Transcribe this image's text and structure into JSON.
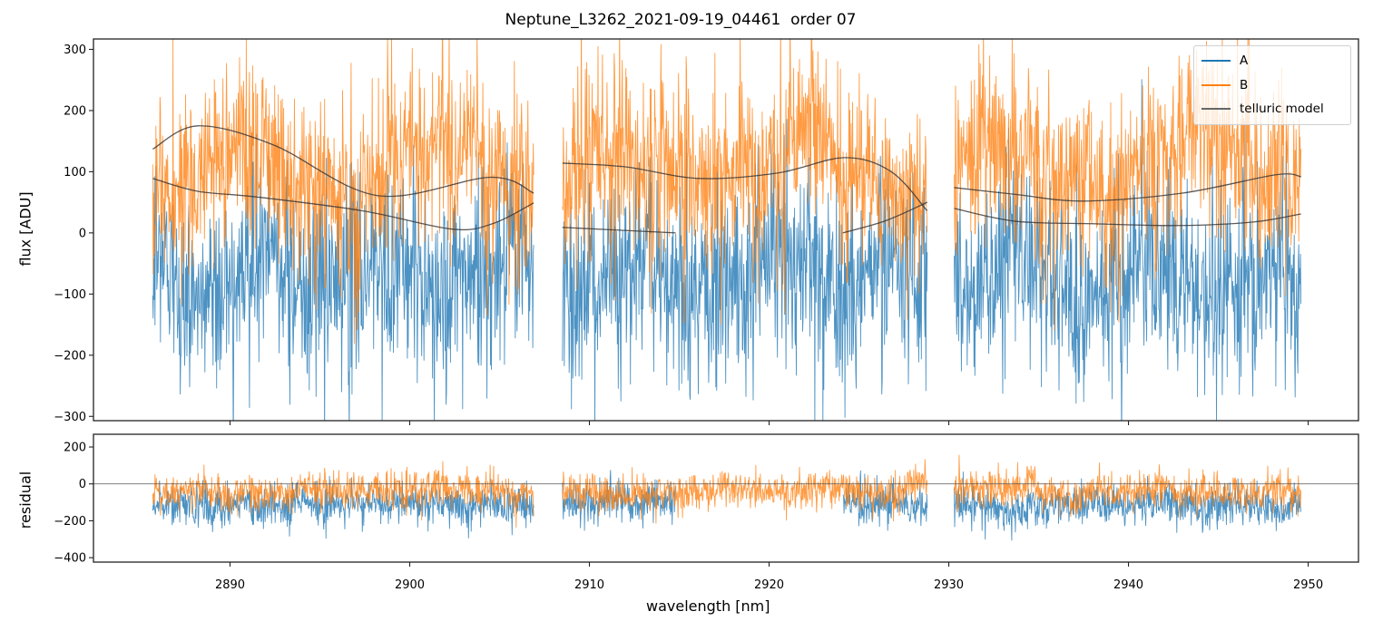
{
  "chart_data": {
    "type": "line",
    "title": "Neptune_L3262_2021-09-19_04461  order 07",
    "xlabel": "wavelength [nm]",
    "xlim": [
      2882.4,
      2952.8
    ],
    "x_ticks": [
      2890,
      2900,
      2910,
      2920,
      2930,
      2940,
      2950
    ],
    "x_tick_labels": [
      "2890",
      "2900",
      "2910",
      "2920",
      "2930",
      "2940",
      "2950"
    ],
    "legend_position": "top-right",
    "colors": {
      "A": "#1f77b4",
      "B": "#ff7f0e",
      "telluric": "#555555",
      "axes": "#222222"
    },
    "panels": [
      {
        "name": "flux",
        "ylabel": "flux [ADU]",
        "ylim": [
          -307,
          317
        ],
        "y_ticks": [
          300,
          200,
          100,
          0,
          -100,
          -200,
          -300
        ],
        "y_tick_labels": [
          "300",
          "200",
          "100",
          "0",
          "−100",
          "−200",
          "−300"
        ],
        "segments_nm": [
          [
            2885.7,
            2906.9
          ],
          [
            2908.5,
            2928.8
          ],
          [
            2930.3,
            2949.6
          ]
        ],
        "series": [
          {
            "name": "A",
            "description_level": "noisy spectrum, mean about -60, spread about 150"
          },
          {
            "name": "B",
            "description_level": "noisy spectrum, mean about 110, spread about 130"
          },
          {
            "name": "telluric model",
            "curves": [
              {
                "x": [
                  2885.7,
                  2888.2,
                  2892.4,
                  2898.2,
                  2904.5,
                  2906.9
                ],
                "y": [
                  137,
                  175,
                  144,
                  61,
                  91,
                  65
                ]
              },
              {
                "x": [
                  2885.7,
                  2888.2,
                  2891.4,
                  2897.4,
                  2902.4,
                  2904.7,
                  2906.9
                ],
                "y": [
                  89,
                  68,
                  59,
                  36,
                  6,
                  16,
                  49
                ]
              },
              {
                "x": [
                  2908.5,
                  2912.0,
                  2916.1,
                  2920.5,
                  2924.2,
                  2926.8,
                  2928.8
                ],
                "y": [
                  114,
                  108,
                  89,
                  98,
                  123,
                  100,
                  36
                ]
              },
              {
                "x": [
                  2908.5,
                  2914.8
                ],
                "y": [
                  9,
                  0
                ]
              },
              {
                "x": [
                  2924.1,
                  2926.5,
                  2928.8
                ],
                "y": [
                  0,
                  20,
                  50
                ]
              },
              {
                "x": [
                  2930.3,
                  2933.7,
                  2937.5,
                  2943.0,
                  2948.2,
                  2949.6
                ],
                "y": [
                  74,
                  63,
                  52,
                  65,
                  95,
                  92
                ]
              },
              {
                "x": [
                  2930.3,
                  2933.7,
                  2938.0,
                  2942.8,
                  2947.0,
                  2949.6
                ],
                "y": [
                  40,
                  19,
                  15,
                  12,
                  18,
                  31
                ]
              }
            ]
          }
        ]
      },
      {
        "name": "residual",
        "ylabel": "residual",
        "ylim": [
          -424,
          269
        ],
        "y_ticks": [
          200,
          0,
          -200,
          -400
        ],
        "y_tick_labels": [
          "200",
          "0",
          "−200",
          "−400"
        ],
        "zero_line": 0,
        "series": [
          {
            "name": "A",
            "gap_nm": [
              2914.8,
              2924.1
            ]
          },
          {
            "name": "B"
          }
        ]
      }
    ],
    "legend": [
      "A",
      "B",
      "telluric model"
    ]
  }
}
